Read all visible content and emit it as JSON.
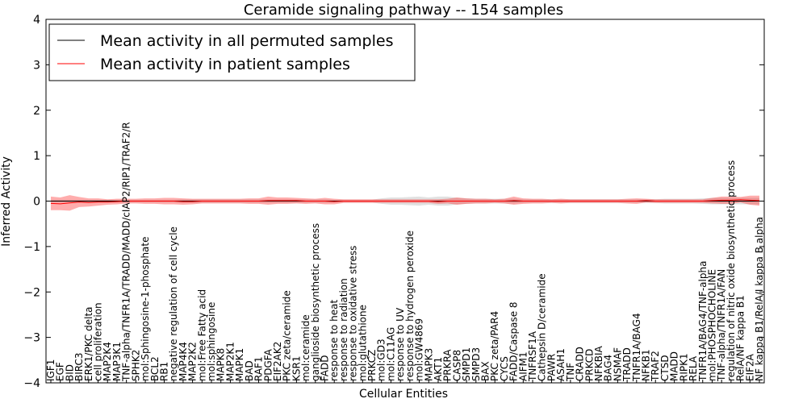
{
  "chart_data": {
    "type": "line",
    "title": "Ceramide signaling pathway -- 154 samples",
    "xlabel": "Cellular Entities",
    "ylabel": "Inferred Activity",
    "ylim": [
      -4,
      4
    ],
    "yticks": [
      -4,
      -3,
      -2,
      -1,
      0,
      1,
      2,
      3,
      4
    ],
    "ytick_labels": [
      "−4",
      "−3",
      "−2",
      "−1",
      "0",
      "1",
      "2",
      "3",
      "4"
    ],
    "legend": {
      "placement": "top-left",
      "entries": [
        {
          "label": "Mean activity in all permuted samples",
          "color": "#000000"
        },
        {
          "label": "Mean activity in patient samples",
          "color": "#ff0000"
        }
      ]
    },
    "categories": [
      "IGF1",
      "EGF",
      "BID",
      "BIRC3",
      "ERK1/PKC delta",
      "cell proliferation",
      "MAP2K4",
      "MAP3K1",
      "TNF-alpha/TNFR1A/TRADD/MADD/cIAP2/RIP1/TRAF2/R",
      "SPHK2",
      "mol:Sphingosine-1-phosphate",
      "BCL2",
      "RB1",
      "negative regulation of cell cycle",
      "MAP4K4",
      "MAP2K2",
      "mol:Free Fatty acid",
      "mol:sphingosine",
      "MAPK8",
      "MAP2K1",
      "MAPK1",
      "BAD",
      "RAF1",
      "PDGFA",
      "EIF2AK2",
      "PKC zeta/ceramide",
      "KSR1",
      "mol:ceramide",
      "ganglioside biosynthetic process",
      "FADD",
      "response to heat",
      "response to radiation",
      "response to oxidative stress",
      "mol:glutathione",
      "PRKCZ",
      "mol:GD3",
      "mol:C11AG",
      "response to UV",
      "response to hydrogen peroxide",
      "mol:GW4869",
      "MAPK3",
      "AKT1",
      "PRKRA",
      "CASP8",
      "SMPD1",
      "SMPD3",
      "BAX",
      "PKC zeta/PAR4",
      "CYCS",
      "FADD/Caspase 8",
      "AIFM1",
      "TNFRSF1A",
      "Cathepsin D/ceramide",
      "PAWR",
      "ASAH1",
      "TNF",
      "CRADD",
      "PRKCD",
      "NFKBIA",
      "BAG4",
      "NSMAF",
      "TRADD",
      "TNFR1A/BAG4",
      "NFKB1",
      "TRAF2",
      "CTSD",
      "MADD",
      "RIPK1",
      "RELA",
      "TNFR1A/BAG4/TNF-alpha",
      "mol:PHOSPHOCHOLINE",
      "TNF-alpha/TNFR1A/FAN",
      "regulation of nitric oxide biosynthetic process",
      "RelA/NF kappa B1",
      "EIF2A",
      "NF kappa B1/RelA/I kappa B alpha"
    ],
    "series": [
      {
        "name": "Mean activity in all permuted samples",
        "color": "#000000",
        "values": [
          0,
          0,
          0,
          0,
          0,
          0,
          0,
          0,
          0,
          0,
          0,
          0,
          0,
          0,
          0,
          0,
          0,
          0,
          0,
          0,
          0,
          0,
          0,
          0,
          0,
          0,
          0,
          0,
          0,
          0,
          0,
          0,
          0,
          0,
          0,
          0,
          0,
          0,
          0,
          0,
          0,
          0,
          0,
          0,
          0,
          0,
          0,
          0,
          0,
          0,
          0,
          0,
          0,
          0,
          0,
          0,
          0,
          0,
          0,
          0,
          0,
          0,
          0,
          0,
          0,
          0,
          0,
          0,
          0,
          0,
          0,
          0,
          0,
          0,
          0,
          0
        ],
        "spread": [
          0.03,
          0.03,
          0.03,
          0.03,
          0.03,
          0.03,
          0.03,
          0.03,
          0.03,
          0.03,
          0.03,
          0.03,
          0.03,
          0.03,
          0.04,
          0.04,
          0.04,
          0.04,
          0.04,
          0.04,
          0.04,
          0.04,
          0.04,
          0.04,
          0.04,
          0.04,
          0.04,
          0.04,
          0.04,
          0.04,
          0.03,
          0.03,
          0.03,
          0.03,
          0.03,
          0.06,
          0.08,
          0.08,
          0.09,
          0.1,
          0.08,
          0.1,
          0.1,
          0.07,
          0.06,
          0.05,
          0.05,
          0.05,
          0.05,
          0.05,
          0.04,
          0.04,
          0.04,
          0.04,
          0.04,
          0.04,
          0.04,
          0.04,
          0.04,
          0.04,
          0.04,
          0.04,
          0.04,
          0.04,
          0.04,
          0.05,
          0.05,
          0.05,
          0.05,
          0.06,
          0.07,
          0.07,
          0.07,
          0.07,
          0.07,
          0.07
        ]
      },
      {
        "name": "Mean activity in patient samples",
        "color": "#ff0000",
        "values": [
          -0.05,
          -0.06,
          -0.04,
          -0.02,
          -0.03,
          -0.02,
          -0.02,
          -0.01,
          0,
          0,
          0,
          0,
          0,
          0,
          -0.01,
          -0.01,
          0,
          0,
          0,
          0,
          0,
          0,
          0,
          0.01,
          0.01,
          0.01,
          0.01,
          0,
          0,
          0,
          -0.01,
          0,
          0,
          0,
          0,
          0,
          0,
          0,
          0,
          0,
          0,
          -0.01,
          0,
          0,
          0,
          0,
          0,
          0,
          0,
          0.01,
          0,
          0,
          0,
          0,
          0,
          0,
          0,
          0,
          0,
          0,
          0,
          0,
          0,
          0.01,
          0,
          0,
          0,
          0,
          0,
          0,
          0.01,
          0.02,
          0.02,
          0.03,
          0.02,
          0.01
        ],
        "spread": [
          0.15,
          0.14,
          0.17,
          0.11,
          0.09,
          0.08,
          0.06,
          0.06,
          0.05,
          0.05,
          0.06,
          0.06,
          0.07,
          0.07,
          0.07,
          0.06,
          0.05,
          0.05,
          0.05,
          0.05,
          0.05,
          0.06,
          0.06,
          0.09,
          0.07,
          0.07,
          0.06,
          0.06,
          0.05,
          0.07,
          0.06,
          0.04,
          0.04,
          0.04,
          0.04,
          0.04,
          0.04,
          0.04,
          0.04,
          0.04,
          0.04,
          0.05,
          0.05,
          0.08,
          0.06,
          0.05,
          0.05,
          0.04,
          0.05,
          0.09,
          0.06,
          0.05,
          0.05,
          0.04,
          0.05,
          0.04,
          0.04,
          0.04,
          0.04,
          0.04,
          0.04,
          0.05,
          0.06,
          0.04,
          0.04,
          0.04,
          0.04,
          0.04,
          0.04,
          0.04,
          0.06,
          0.08,
          0.08,
          0.06,
          0.1,
          0.11
        ]
      }
    ]
  }
}
